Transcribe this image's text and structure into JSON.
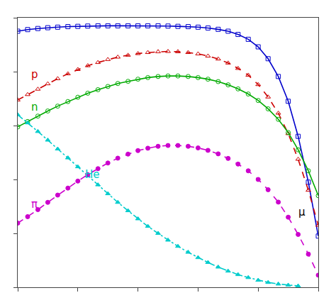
{
  "chart_data": {
    "type": "line",
    "xlim": [
      0,
      1
    ],
    "ylim": [
      0,
      1
    ],
    "xticks": [
      0,
      0.2,
      0.4,
      0.6,
      0.8,
      1
    ],
    "yticks": [
      0,
      0.2,
      0.4,
      0.6,
      0.8,
      1
    ],
    "grid": false,
    "tick_labels": false,
    "series": [
      {
        "name": "μ",
        "color": "#0000cc",
        "marker": "square-open",
        "line_style": "solid",
        "x": [
          0.0,
          0.033,
          0.067,
          0.1,
          0.133,
          0.167,
          0.2,
          0.233,
          0.267,
          0.3,
          0.333,
          0.367,
          0.4,
          0.433,
          0.467,
          0.5,
          0.533,
          0.567,
          0.6,
          0.633,
          0.667,
          0.7,
          0.733,
          0.767,
          0.8,
          0.833,
          0.867,
          0.9,
          0.933,
          0.967,
          1.0
        ],
        "values": [
          0.95,
          0.956,
          0.96,
          0.963,
          0.965,
          0.967,
          0.968,
          0.969,
          0.97,
          0.97,
          0.97,
          0.97,
          0.97,
          0.97,
          0.97,
          0.969,
          0.968,
          0.967,
          0.965,
          0.962,
          0.957,
          0.95,
          0.938,
          0.92,
          0.892,
          0.848,
          0.782,
          0.69,
          0.56,
          0.39,
          0.19
        ]
      },
      {
        "name": "p",
        "color": "#cc0000",
        "marker": "triangle-up-open",
        "line_style": "dash",
        "x": [
          0.0,
          0.033,
          0.067,
          0.1,
          0.133,
          0.167,
          0.2,
          0.233,
          0.267,
          0.3,
          0.333,
          0.367,
          0.4,
          0.433,
          0.467,
          0.5,
          0.533,
          0.567,
          0.6,
          0.633,
          0.667,
          0.7,
          0.733,
          0.767,
          0.8,
          0.833,
          0.867,
          0.9,
          0.933,
          0.967,
          1.0
        ],
        "values": [
          0.695,
          0.715,
          0.735,
          0.755,
          0.774,
          0.792,
          0.808,
          0.822,
          0.834,
          0.845,
          0.854,
          0.861,
          0.867,
          0.871,
          0.874,
          0.875,
          0.874,
          0.871,
          0.866,
          0.858,
          0.847,
          0.832,
          0.812,
          0.787,
          0.752,
          0.706,
          0.646,
          0.57,
          0.475,
          0.36,
          0.23
        ]
      },
      {
        "name": "n",
        "color": "#00aa00",
        "marker": "circle-open",
        "line_style": "solid",
        "x": [
          0.0,
          0.033,
          0.067,
          0.1,
          0.133,
          0.167,
          0.2,
          0.233,
          0.267,
          0.3,
          0.333,
          0.367,
          0.4,
          0.433,
          0.467,
          0.5,
          0.533,
          0.567,
          0.6,
          0.633,
          0.667,
          0.7,
          0.733,
          0.767,
          0.8,
          0.833,
          0.867,
          0.9,
          0.933,
          0.967,
          1.0
        ],
        "values": [
          0.595,
          0.615,
          0.635,
          0.654,
          0.672,
          0.689,
          0.705,
          0.72,
          0.733,
          0.745,
          0.756,
          0.764,
          0.772,
          0.778,
          0.782,
          0.784,
          0.784,
          0.782,
          0.778,
          0.772,
          0.763,
          0.751,
          0.736,
          0.717,
          0.693,
          0.662,
          0.623,
          0.574,
          0.51,
          0.432,
          0.34
        ]
      },
      {
        "name": "He",
        "color": "#00cccc",
        "marker": "triangle-up",
        "line_style": "dashdot",
        "x": [
          0.0,
          0.033,
          0.067,
          0.1,
          0.133,
          0.167,
          0.2,
          0.233,
          0.267,
          0.3,
          0.333,
          0.367,
          0.4,
          0.433,
          0.467,
          0.5,
          0.533,
          0.567,
          0.6,
          0.633,
          0.667,
          0.7,
          0.733,
          0.767,
          0.8,
          0.833,
          0.867,
          0.9,
          0.933
        ],
        "values": [
          0.64,
          0.61,
          0.578,
          0.546,
          0.513,
          0.48,
          0.447,
          0.413,
          0.38,
          0.347,
          0.315,
          0.284,
          0.254,
          0.226,
          0.2,
          0.175,
          0.152,
          0.13,
          0.11,
          0.092,
          0.075,
          0.06,
          0.047,
          0.036,
          0.026,
          0.018,
          0.012,
          0.008,
          0.005
        ]
      },
      {
        "name": "π",
        "color": "#cc00cc",
        "marker": "circle",
        "line_style": "dash",
        "x": [
          0.0,
          0.033,
          0.067,
          0.1,
          0.133,
          0.167,
          0.2,
          0.233,
          0.267,
          0.3,
          0.333,
          0.367,
          0.4,
          0.433,
          0.467,
          0.5,
          0.533,
          0.567,
          0.6,
          0.633,
          0.667,
          0.7,
          0.733,
          0.767,
          0.8,
          0.833,
          0.867,
          0.9,
          0.933,
          0.967,
          1.0
        ],
        "values": [
          0.238,
          0.262,
          0.288,
          0.315,
          0.342,
          0.368,
          0.394,
          0.418,
          0.44,
          0.461,
          0.479,
          0.494,
          0.507,
          0.516,
          0.523,
          0.526,
          0.526,
          0.523,
          0.517,
          0.508,
          0.495,
          0.478,
          0.457,
          0.432,
          0.4,
          0.362,
          0.316,
          0.26,
          0.196,
          0.123,
          0.045
        ]
      }
    ],
    "annotations": [
      {
        "text": "μ",
        "x": 0.93,
        "y": 0.25,
        "color": "#000000"
      },
      {
        "text": "p",
        "x": 0.04,
        "y": 0.76,
        "color": "#cc0000"
      },
      {
        "text": "n",
        "x": 0.04,
        "y": 0.64,
        "color": "#00aa00"
      },
      {
        "text": "He",
        "x": 0.22,
        "y": 0.39,
        "color": "#00cccc"
      },
      {
        "text": "π",
        "x": 0.04,
        "y": 0.28,
        "color": "#cc00cc"
      }
    ]
  }
}
